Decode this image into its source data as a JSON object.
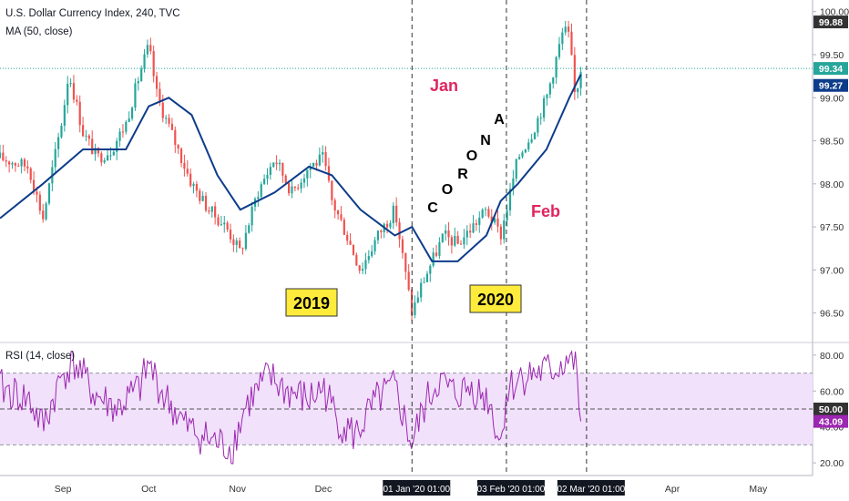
{
  "header": {
    "symbol_line": "U.S. Dollar Currency Index, 240, TVC",
    "indicator_line": "MA (50, close)"
  },
  "rsi_panel": {
    "label": "RSI (14, close)",
    "axis_ticks": [
      "80.00",
      "60.00",
      "40.00",
      "20.00"
    ],
    "band_upper": 70,
    "band_lower": 30,
    "mid_value": 50,
    "mid_badge": "50.00",
    "current_badge": "43.09",
    "line_color": "#9c27b0",
    "band_fill": "#f1e1fb"
  },
  "annotations": {
    "year_2019": "2019",
    "year_2020": "2020",
    "month_jan": "Jan",
    "month_feb": "Feb",
    "corona_letters": [
      "C",
      "O",
      "R",
      "O",
      "N",
      "A"
    ],
    "accent_color": "#e0245e",
    "year_box_color": "#ffeb3b"
  },
  "x_axis": {
    "labels": [
      "Sep",
      "Oct",
      "Nov",
      "Dec",
      "Apr",
      "May"
    ],
    "highlight_labels": [
      "01 Jan '20  01:00",
      "03 Feb '20  01:00",
      "02 Mar '20  01:00"
    ]
  },
  "price_badges": {
    "high": "99.88",
    "last": "99.34",
    "ma": "99.27"
  },
  "colors": {
    "up": "#26a69a",
    "down": "#ef5350",
    "ma_line": "#0d3c8a",
    "last_line": "#26a69a",
    "badge_dark": "#333333",
    "badge_ma": "#0d3c8a"
  },
  "chart_data": {
    "type": "candlestick",
    "title": "U.S. Dollar Currency Index, 240, TVC",
    "ylim": [
      96.2,
      100.05
    ],
    "y_ticks": [
      "100.00",
      "99.50",
      "99.00",
      "98.50",
      "98.00",
      "97.50",
      "97.00",
      "96.50"
    ],
    "x_range": [
      "2019-08-10",
      "2020-05-20"
    ],
    "grid": false,
    "series": [
      {
        "name": "U.S. Dollar Currency Index",
        "x": [
          "2019-08-10",
          "2019-08-20",
          "2019-08-25",
          "2019-09-01",
          "2019-09-03",
          "2019-09-08",
          "2019-09-13",
          "2019-09-18",
          "2019-09-23",
          "2019-09-28",
          "2019-10-01",
          "2019-10-04",
          "2019-10-10",
          "2019-10-16",
          "2019-10-22",
          "2019-10-28",
          "2019-11-02",
          "2019-11-08",
          "2019-11-14",
          "2019-11-20",
          "2019-11-26",
          "2019-12-01",
          "2019-12-04",
          "2019-12-08",
          "2019-12-14",
          "2019-12-20",
          "2019-12-26",
          "2020-01-01",
          "2020-01-04",
          "2020-01-08",
          "2020-01-12",
          "2020-01-17",
          "2020-01-22",
          "2020-01-27",
          "2020-02-01",
          "2020-02-03",
          "2020-02-07",
          "2020-02-12",
          "2020-02-17",
          "2020-02-20",
          "2020-02-23",
          "2020-02-25",
          "2020-02-27",
          "2020-02-29"
        ],
        "close": [
          98.3,
          98.2,
          97.6,
          98.8,
          99.3,
          98.6,
          98.3,
          98.4,
          98.7,
          99.3,
          99.6,
          99.0,
          98.5,
          98.0,
          97.7,
          97.5,
          97.2,
          97.9,
          98.3,
          97.9,
          98.2,
          98.3,
          97.8,
          97.5,
          97.0,
          97.4,
          97.7,
          96.5,
          96.8,
          97.1,
          97.4,
          97.3,
          97.5,
          97.7,
          97.4,
          97.7,
          98.3,
          98.6,
          99.0,
          99.4,
          99.8,
          99.7,
          99.0,
          99.34
        ]
      },
      {
        "name": "MA (50, close)",
        "x": [
          "2019-08-10",
          "2019-08-25",
          "2019-09-08",
          "2019-09-23",
          "2019-10-01",
          "2019-10-08",
          "2019-10-16",
          "2019-10-25",
          "2019-11-02",
          "2019-11-14",
          "2019-11-26",
          "2019-12-04",
          "2019-12-14",
          "2019-12-26",
          "2020-01-01",
          "2020-01-08",
          "2020-01-17",
          "2020-01-27",
          "2020-02-01",
          "2020-02-07",
          "2020-02-17",
          "2020-02-25",
          "2020-02-29"
        ],
        "values": [
          97.6,
          98.0,
          98.4,
          98.4,
          98.9,
          99.0,
          98.8,
          98.1,
          97.7,
          97.9,
          98.2,
          98.1,
          97.7,
          97.4,
          97.5,
          97.1,
          97.1,
          97.4,
          97.8,
          98.0,
          98.4,
          99.0,
          99.27
        ]
      },
      {
        "name": "RSI (14, close)",
        "x": [
          "2019-08-10",
          "2019-08-20",
          "2019-08-25",
          "2019-09-01",
          "2019-09-05",
          "2019-09-12",
          "2019-09-20",
          "2019-09-28",
          "2019-10-01",
          "2019-10-06",
          "2019-10-14",
          "2019-10-22",
          "2019-10-30",
          "2019-11-04",
          "2019-11-12",
          "2019-11-18",
          "2019-11-26",
          "2019-12-01",
          "2019-12-06",
          "2019-12-12",
          "2019-12-20",
          "2019-12-26",
          "2020-01-01",
          "2020-01-05",
          "2020-01-10",
          "2020-01-16",
          "2020-01-22",
          "2020-01-28",
          "2020-02-01",
          "2020-02-03",
          "2020-02-08",
          "2020-02-14",
          "2020-02-20",
          "2020-02-24",
          "2020-02-27",
          "2020-02-29"
        ],
        "values": [
          62,
          55,
          40,
          70,
          76,
          58,
          50,
          62,
          75,
          58,
          40,
          33,
          28,
          52,
          68,
          60,
          55,
          62,
          44,
          35,
          55,
          62,
          30,
          50,
          66,
          58,
          62,
          55,
          30,
          60,
          68,
          70,
          72,
          78,
          76,
          43.09
        ]
      }
    ]
  }
}
